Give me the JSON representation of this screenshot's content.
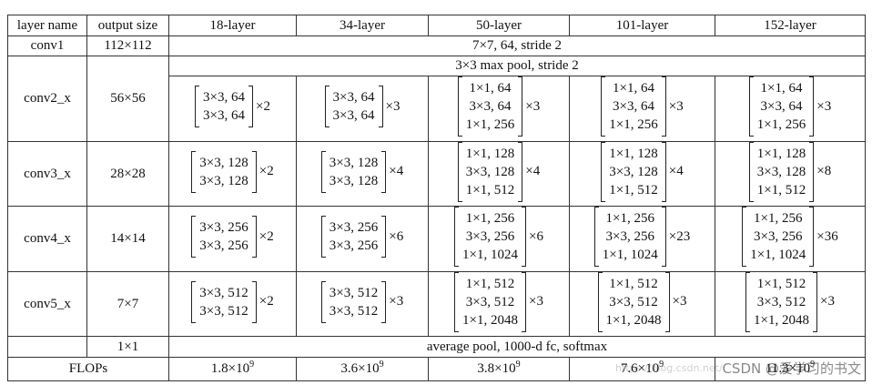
{
  "header": {
    "layer_name": "layer name",
    "output_size": "output size",
    "layers": [
      "18-layer",
      "34-layer",
      "50-layer",
      "101-layer",
      "152-layer"
    ]
  },
  "conv1": {
    "name": "conv1",
    "size": "112×112",
    "spec": "7×7, 64, stride 2"
  },
  "pool": {
    "spec": "3×3 max pool, stride 2"
  },
  "stages": [
    {
      "name": "conv2_x",
      "size": "56×56",
      "blocks": [
        {
          "lines": [
            "3×3, 64",
            "3×3, 64"
          ],
          "mult": "×2"
        },
        {
          "lines": [
            "3×3, 64",
            "3×3, 64"
          ],
          "mult": "×3"
        },
        {
          "lines": [
            "1×1, 64",
            "3×3, 64",
            "1×1, 256"
          ],
          "mult": "×3"
        },
        {
          "lines": [
            "1×1, 64",
            "3×3, 64",
            "1×1, 256"
          ],
          "mult": "×3"
        },
        {
          "lines": [
            "1×1, 64",
            "3×3, 64",
            "1×1, 256"
          ],
          "mult": "×3"
        }
      ]
    },
    {
      "name": "conv3_x",
      "size": "28×28",
      "blocks": [
        {
          "lines": [
            "3×3, 128",
            "3×3, 128"
          ],
          "mult": "×2"
        },
        {
          "lines": [
            "3×3, 128",
            "3×3, 128"
          ],
          "mult": "×4"
        },
        {
          "lines": [
            "1×1, 128",
            "3×3, 128",
            "1×1, 512"
          ],
          "mult": "×4"
        },
        {
          "lines": [
            "1×1, 128",
            "3×3, 128",
            "1×1, 512"
          ],
          "mult": "×4"
        },
        {
          "lines": [
            "1×1, 128",
            "3×3, 128",
            "1×1, 512"
          ],
          "mult": "×8"
        }
      ]
    },
    {
      "name": "conv4_x",
      "size": "14×14",
      "blocks": [
        {
          "lines": [
            "3×3, 256",
            "3×3, 256"
          ],
          "mult": "×2"
        },
        {
          "lines": [
            "3×3, 256",
            "3×3, 256"
          ],
          "mult": "×6"
        },
        {
          "lines": [
            "1×1, 256",
            "3×3, 256",
            "1×1, 1024"
          ],
          "mult": "×6"
        },
        {
          "lines": [
            "1×1, 256",
            "3×3, 256",
            "1×1, 1024"
          ],
          "mult": "×23"
        },
        {
          "lines": [
            "1×1, 256",
            "3×3, 256",
            "1×1, 1024"
          ],
          "mult": "×36"
        }
      ]
    },
    {
      "name": "conv5_x",
      "size": "7×7",
      "blocks": [
        {
          "lines": [
            "3×3, 512",
            "3×3, 512"
          ],
          "mult": "×2"
        },
        {
          "lines": [
            "3×3, 512",
            "3×3, 512"
          ],
          "mult": "×3"
        },
        {
          "lines": [
            "1×1, 512",
            "3×3, 512",
            "1×1, 2048"
          ],
          "mult": "×3"
        },
        {
          "lines": [
            "1×1, 512",
            "3×3, 512",
            "1×1, 2048"
          ],
          "mult": "×3"
        },
        {
          "lines": [
            "1×1, 512",
            "3×3, 512",
            "1×1, 2048"
          ],
          "mult": "×3"
        }
      ]
    }
  ],
  "avg": {
    "size": "1×1",
    "spec": "average pool, 1000-d fc, softmax"
  },
  "flops": {
    "label": "FLOPs",
    "values": [
      {
        "base": "1.8×10",
        "exp": "9"
      },
      {
        "base": "3.6×10",
        "exp": "9"
      },
      {
        "base": "3.8×10",
        "exp": "9"
      },
      {
        "base": "7.6×10",
        "exp": "9"
      },
      {
        "base": "11.3×10",
        "exp": "9"
      }
    ]
  },
  "watermark": {
    "main": "CSDN @爱学习的书文",
    "faint": "https://blog.csdn.net/"
  }
}
